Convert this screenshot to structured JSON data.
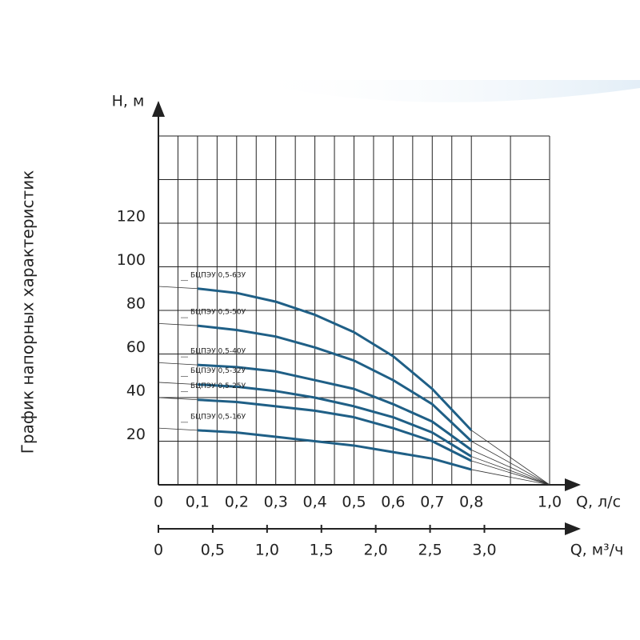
{
  "chart_data": {
    "type": "line",
    "title": "График напорных характеристик",
    "y_label": "Н, м",
    "x_label": "Q, л/с",
    "x2_label": "Q, м³/ч",
    "x": [
      0,
      0.1,
      0.2,
      0.3,
      0.4,
      0.5,
      0.6,
      0.7,
      0.8,
      1.0
    ],
    "series": [
      {
        "name": "БЦПЭУ 0,5-63У",
        "color": "#1f5f86",
        "values": [
          91,
          90,
          88,
          84,
          78,
          70,
          59,
          44,
          25,
          0
        ]
      },
      {
        "name": "БЦПЭУ 0,5-50У",
        "color": "#1f5f86",
        "values": [
          74,
          73,
          71,
          68,
          63,
          57,
          48,
          37,
          20,
          0
        ]
      },
      {
        "name": "БЦПЭУ 0,5-40У",
        "color": "#1f5f86",
        "values": [
          56,
          55,
          54,
          52,
          48,
          44,
          37,
          29,
          16,
          0
        ]
      },
      {
        "name": "БЦПЭУ 0,5-32У",
        "color": "#1f5f86",
        "values": [
          47,
          46,
          45,
          43,
          40,
          36,
          31,
          24,
          13,
          0
        ]
      },
      {
        "name": "БЦПЭУ 0,5-25У",
        "color": "#1f5f86",
        "values": [
          40,
          39,
          38,
          36,
          34,
          31,
          26,
          20,
          11,
          0
        ]
      },
      {
        "name": "БЦПЭУ 0,5-16У",
        "color": "#1f5f86",
        "values": [
          26,
          25,
          24,
          22,
          20,
          18,
          15,
          12,
          7,
          0
        ]
      }
    ],
    "xlim": [
      0,
      1.0
    ],
    "xticks": [
      0,
      {
        "value": 0.1,
        "label": "0,1"
      },
      {
        "value": 0.2,
        "label": "0,2"
      },
      {
        "value": 0.3,
        "label": "0,3"
      },
      {
        "value": 0.4,
        "label": "0,4"
      },
      {
        "value": 0.5,
        "label": "0,5"
      },
      {
        "value": 0.6,
        "label": "0,6"
      },
      {
        "value": 0.7,
        "label": "0,7"
      },
      {
        "value": 0.8,
        "label": "0,8"
      },
      {
        "value": 1.0,
        "label": "1,0"
      }
    ],
    "x2lim": [
      0,
      3.6
    ],
    "x2ticks": [
      0,
      {
        "value": 0.5,
        "label": "0,5"
      },
      {
        "value": 1.0,
        "label": "1,0"
      },
      {
        "value": 1.5,
        "label": "1,5"
      },
      {
        "value": 2.0,
        "label": "2,0"
      },
      {
        "value": 2.5,
        "label": "2,5"
      },
      {
        "value": 3.0,
        "label": "3,0"
      }
    ],
    "ylim": [
      0,
      160
    ],
    "yticks": [
      20,
      40,
      60,
      80,
      100,
      120
    ],
    "ygrid": [
      0,
      20,
      40,
      60,
      80,
      100,
      120,
      140,
      160
    ],
    "grid": true
  }
}
